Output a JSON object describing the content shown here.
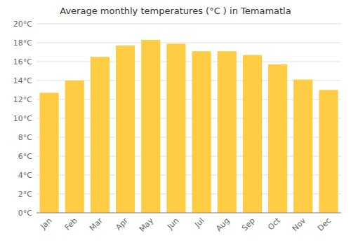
{
  "chart_data": {
    "type": "bar",
    "title": "Average monthly temperatures (°C ) in Temamatla",
    "categories": [
      "Jan",
      "Feb",
      "Mar",
      "Apr",
      "May",
      "Jun",
      "Jul",
      "Aug",
      "Sep",
      "Oct",
      "Nov",
      "Dec"
    ],
    "values": [
      12.7,
      14.0,
      16.5,
      17.7,
      18.3,
      17.9,
      17.1,
      17.1,
      16.7,
      15.7,
      14.1,
      13.0
    ],
    "color": "#FFCC44",
    "ylim": [
      0,
      20
    ],
    "yticks": [
      {
        "value": 0,
        "label": "0°C"
      },
      {
        "value": 2,
        "label": "2°C"
      },
      {
        "value": 4,
        "label": "4°C"
      },
      {
        "value": 6,
        "label": "6°C"
      },
      {
        "value": 8,
        "label": "8°C"
      },
      {
        "value": 10,
        "label": "10°C"
      },
      {
        "value": 12,
        "label": "12°C"
      },
      {
        "value": 14,
        "label": "14°C"
      },
      {
        "value": 16,
        "label": "16°C"
      },
      {
        "value": 18,
        "label": "18°C"
      },
      {
        "value": 20,
        "label": "20°C"
      }
    ],
    "grid": true
  }
}
